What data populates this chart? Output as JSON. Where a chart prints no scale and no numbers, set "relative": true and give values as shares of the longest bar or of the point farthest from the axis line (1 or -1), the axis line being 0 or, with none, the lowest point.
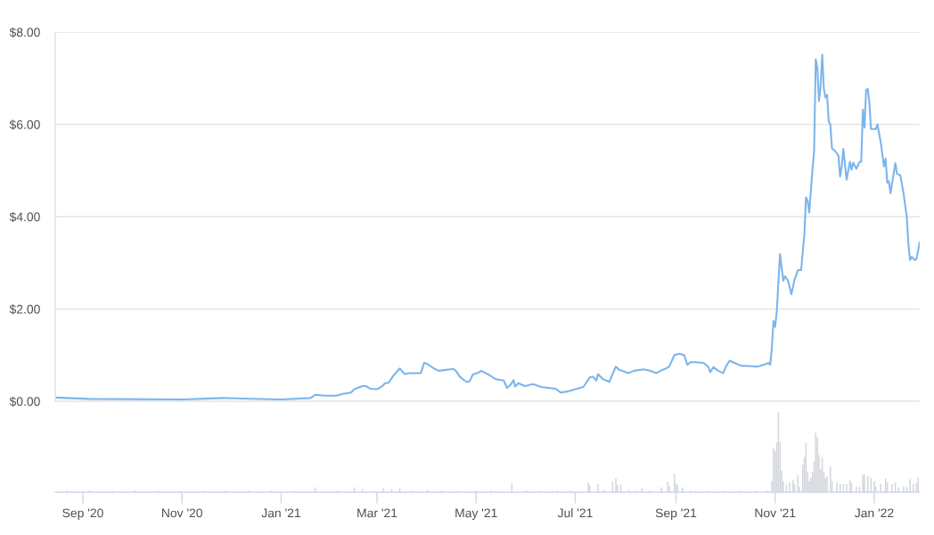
{
  "chart_data": [
    {
      "type": "line",
      "color": "#7cb5ec",
      "x": [
        "2020-08-15",
        "2020-09-05",
        "2020-11-01",
        "2020-11-26",
        "2021-01-01",
        "2021-01-19",
        "2021-01-22",
        "2021-01-28",
        "2021-02-04",
        "2021-02-08",
        "2021-02-13",
        "2021-02-15",
        "2021-02-20",
        "2021-02-22",
        "2021-02-25",
        "2021-03-01",
        "2021-03-04",
        "2021-03-06",
        "2021-03-08",
        "2021-03-11",
        "2021-03-15",
        "2021-03-18",
        "2021-03-21",
        "2021-03-28",
        "2021-03-30",
        "2021-04-01",
        "2021-04-05",
        "2021-04-08",
        "2021-04-17",
        "2021-04-19",
        "2021-04-21",
        "2021-04-25",
        "2021-04-27",
        "2021-04-29",
        "2021-05-03",
        "2021-05-04",
        "2021-05-08",
        "2021-05-13",
        "2021-05-18",
        "2021-05-20",
        "2021-05-22",
        "2021-05-24",
        "2021-05-25",
        "2021-05-27",
        "2021-05-31",
        "2021-06-05",
        "2021-06-10",
        "2021-06-19",
        "2021-06-22",
        "2021-06-26",
        "2021-07-01",
        "2021-07-06",
        "2021-07-10",
        "2021-07-12",
        "2021-07-14",
        "2021-07-15",
        "2021-07-18",
        "2021-07-22",
        "2021-07-24",
        "2021-07-26",
        "2021-07-28",
        "2021-08-03",
        "2021-08-06",
        "2021-08-12",
        "2021-08-16",
        "2021-08-20",
        "2021-08-23",
        "2021-08-26",
        "2021-08-28",
        "2021-08-31",
        "2021-09-03",
        "2021-09-06",
        "2021-09-08",
        "2021-09-10",
        "2021-09-15",
        "2021-09-18",
        "2021-09-21",
        "2021-09-22",
        "2021-09-24",
        "2021-09-27",
        "2021-09-30",
        "2021-10-02",
        "2021-10-04",
        "2021-10-07",
        "2021-10-11",
        "2021-10-18",
        "2021-10-21",
        "2021-10-25",
        "2021-10-28",
        "2021-10-29",
        "2021-10-30",
        "2021-10-31",
        "2021-11-01",
        "2021-11-02",
        "2021-11-04",
        "2021-11-06",
        "2021-11-07",
        "2021-11-09",
        "2021-11-11",
        "2021-11-13",
        "2021-11-15",
        "2021-11-17",
        "2021-11-19",
        "2021-11-20",
        "2021-11-21",
        "2021-11-22",
        "2021-11-24",
        "2021-11-25",
        "2021-11-26",
        "2021-11-27",
        "2021-11-28",
        "2021-11-29",
        "2021-11-30",
        "2021-12-01",
        "2021-12-02",
        "2021-12-03",
        "2021-12-04",
        "2021-12-05",
        "2021-12-06",
        "2021-12-08",
        "2021-12-10",
        "2021-12-11",
        "2021-12-12",
        "2021-12-13",
        "2021-12-15",
        "2021-12-17",
        "2021-12-18",
        "2021-12-19",
        "2021-12-21",
        "2021-12-23",
        "2021-12-24",
        "2021-12-25",
        "2021-12-26",
        "2021-12-27",
        "2021-12-28",
        "2021-12-29",
        "2021-12-30",
        "2022-01-02",
        "2022-01-03",
        "2022-01-05",
        "2022-01-07",
        "2022-01-08",
        "2022-01-09",
        "2022-01-10",
        "2022-01-11",
        "2022-01-14",
        "2022-01-15",
        "2022-01-17",
        "2022-01-19",
        "2022-01-21",
        "2022-01-22",
        "2022-01-23",
        "2022-01-24",
        "2022-01-26",
        "2022-01-27",
        "2022-01-29"
      ],
      "values": [
        0.08,
        0.05,
        0.04,
        0.07,
        0.04,
        0.07,
        0.14,
        0.12,
        0.12,
        0.16,
        0.19,
        0.26,
        0.33,
        0.33,
        0.27,
        0.26,
        0.32,
        0.39,
        0.4,
        0.55,
        0.71,
        0.59,
        0.61,
        0.61,
        0.83,
        0.81,
        0.71,
        0.66,
        0.7,
        0.64,
        0.53,
        0.42,
        0.43,
        0.58,
        0.63,
        0.66,
        0.59,
        0.48,
        0.45,
        0.29,
        0.35,
        0.46,
        0.32,
        0.39,
        0.33,
        0.37,
        0.31,
        0.27,
        0.19,
        0.21,
        0.26,
        0.31,
        0.52,
        0.53,
        0.45,
        0.59,
        0.48,
        0.42,
        0.59,
        0.75,
        0.68,
        0.61,
        0.66,
        0.69,
        0.66,
        0.61,
        0.67,
        0.71,
        0.76,
        1.0,
        1.03,
        1.0,
        0.79,
        0.85,
        0.84,
        0.83,
        0.74,
        0.63,
        0.74,
        0.66,
        0.61,
        0.77,
        0.88,
        0.83,
        0.77,
        0.76,
        0.75,
        0.79,
        0.83,
        0.79,
        1.16,
        1.74,
        1.61,
        1.93,
        3.19,
        2.61,
        2.71,
        2.61,
        2.32,
        2.64,
        2.84,
        2.84,
        3.61,
        4.42,
        4.35,
        4.09,
        5.03,
        5.42,
        7.41,
        7.22,
        6.51,
        6.83,
        7.51,
        6.77,
        6.58,
        6.64,
        6.06,
        6.0,
        5.48,
        5.42,
        5.32,
        4.87,
        5.09,
        5.47,
        4.8,
        5.19,
        5.02,
        5.17,
        5.04,
        5.19,
        5.19,
        6.32,
        5.93,
        6.74,
        6.77,
        6.48,
        5.9,
        5.9,
        6.0,
        5.61,
        5.09,
        5.26,
        4.74,
        4.77,
        4.51,
        5.16,
        4.93,
        4.9,
        4.51,
        4.0,
        3.42,
        3.06,
        3.13,
        3.06,
        3.09,
        3.45
      ],
      "xlim": [
        "2020-08-15",
        "2022-01-29"
      ],
      "ylim": [
        0,
        8
      ],
      "yticks": [
        {
          "value": 0,
          "label": "$0.00"
        },
        {
          "value": 2,
          "label": "$2.00"
        },
        {
          "value": 4,
          "label": "$4.00"
        },
        {
          "value": 6,
          "label": "$6.00"
        },
        {
          "value": 8,
          "label": "$8.00"
        }
      ],
      "grid": "y",
      "tick_labels": "y"
    },
    {
      "type": "bar",
      "color": "#d3d6dc",
      "relative": true,
      "x": [
        "2020-08-22",
        "2020-09-05",
        "2020-09-19",
        "2020-10-03",
        "2020-10-17",
        "2020-10-31",
        "2020-11-14",
        "2020-11-28",
        "2020-12-12",
        "2020-12-26",
        "2021-01-09",
        "2021-01-22",
        "2021-02-05",
        "2021-02-15",
        "2021-02-20",
        "2021-02-27",
        "2021-03-05",
        "2021-03-10",
        "2021-03-15",
        "2021-03-22",
        "2021-04-01",
        "2021-04-10",
        "2021-04-20",
        "2021-05-01",
        "2021-05-10",
        "2021-05-23",
        "2021-06-01",
        "2021-06-10",
        "2021-06-20",
        "2021-06-28",
        "2021-07-09",
        "2021-07-10",
        "2021-07-15",
        "2021-07-19",
        "2021-07-24",
        "2021-07-26",
        "2021-07-27",
        "2021-07-29",
        "2021-08-03",
        "2021-08-08",
        "2021-08-11",
        "2021-08-16",
        "2021-08-23",
        "2021-08-27",
        "2021-08-28",
        "2021-08-31",
        "2021-09-01",
        "2021-09-02",
        "2021-09-05",
        "2021-09-10",
        "2021-09-20",
        "2021-09-30",
        "2021-10-10",
        "2021-10-20",
        "2021-10-27",
        "2021-10-30",
        "2021-10-31",
        "2021-11-01",
        "2021-11-02",
        "2021-11-03",
        "2021-11-04",
        "2021-11-05",
        "2021-11-06",
        "2021-11-08",
        "2021-11-10",
        "2021-11-12",
        "2021-11-13",
        "2021-11-15",
        "2021-11-16",
        "2021-11-18",
        "2021-11-19",
        "2021-11-20",
        "2021-11-21",
        "2021-11-22",
        "2021-11-23",
        "2021-11-24",
        "2021-11-25",
        "2021-11-26",
        "2021-11-27",
        "2021-11-28",
        "2021-11-29",
        "2021-11-30",
        "2021-12-01",
        "2021-12-02",
        "2021-12-03",
        "2021-12-05",
        "2021-12-06",
        "2021-12-09",
        "2021-12-11",
        "2021-12-13",
        "2021-12-15",
        "2021-12-17",
        "2021-12-18",
        "2021-12-21",
        "2021-12-23",
        "2021-12-25",
        "2021-12-26",
        "2021-12-28",
        "2021-12-30",
        "2022-01-01",
        "2022-01-02",
        "2022-01-05",
        "2022-01-08",
        "2022-01-09",
        "2022-01-12",
        "2022-01-14",
        "2022-01-16",
        "2022-01-19",
        "2022-01-21",
        "2022-01-23",
        "2022-01-25",
        "2022-01-27",
        "2022-01-28"
      ],
      "values": [
        0.02,
        0.02,
        0.02,
        0.02,
        0.02,
        0.02,
        0.02,
        0.02,
        0.02,
        0.02,
        0.02,
        0.06,
        0.02,
        0.06,
        0.04,
        0.02,
        0.05,
        0.04,
        0.05,
        0.02,
        0.03,
        0.02,
        0.02,
        0.02,
        0.02,
        0.11,
        0.02,
        0.02,
        0.02,
        0.02,
        0.12,
        0.09,
        0.1,
        0.03,
        0.13,
        0.17,
        0.09,
        0.1,
        0.03,
        0.02,
        0.05,
        0.02,
        0.06,
        0.13,
        0.07,
        0.23,
        0.11,
        0.09,
        0.06,
        0.02,
        0.02,
        0.02,
        0.02,
        0.02,
        0.02,
        0.14,
        0.55,
        0.51,
        0.62,
        1.0,
        0.63,
        0.27,
        0.14,
        0.1,
        0.12,
        0.15,
        0.1,
        0.21,
        0.07,
        0.34,
        0.44,
        0.61,
        0.25,
        0.14,
        0.18,
        0.25,
        0.38,
        0.74,
        0.68,
        0.46,
        0.29,
        0.44,
        0.25,
        0.18,
        0.2,
        0.32,
        0.14,
        0.12,
        0.1,
        0.1,
        0.1,
        0.15,
        0.12,
        0.07,
        0.07,
        0.22,
        0.22,
        0.2,
        0.18,
        0.14,
        0.07,
        0.1,
        0.17,
        0.12,
        0.1,
        0.12,
        0.06,
        0.07,
        0.07,
        0.16,
        0.1,
        0.12,
        0.18
      ],
      "xlim": [
        "2020-08-15",
        "2022-01-29"
      ],
      "xticks": [
        {
          "value": "2020-09-01",
          "label": "Sep '20"
        },
        {
          "value": "2020-11-01",
          "label": "Nov '20"
        },
        {
          "value": "2021-01-01",
          "label": "Jan '21"
        },
        {
          "value": "2021-03-01",
          "label": "Mar '21"
        },
        {
          "value": "2021-05-01",
          "label": "May '21"
        },
        {
          "value": "2021-07-01",
          "label": "Jul '21"
        },
        {
          "value": "2021-09-01",
          "label": "Sep '21"
        },
        {
          "value": "2021-11-01",
          "label": "Nov '21"
        },
        {
          "value": "2022-01-01",
          "label": "Jan '22"
        }
      ],
      "tick_labels": "x"
    }
  ]
}
